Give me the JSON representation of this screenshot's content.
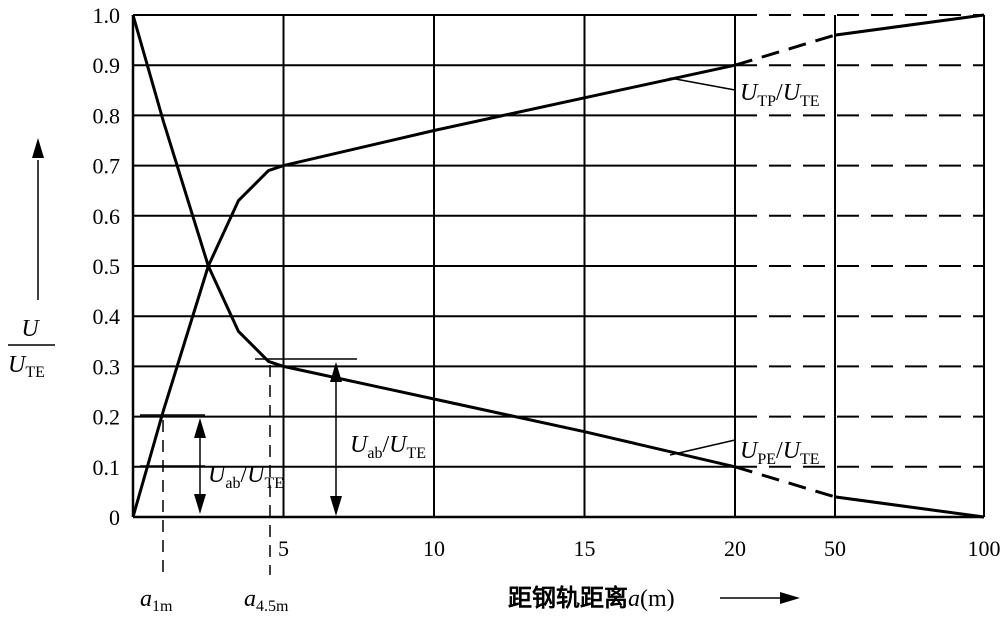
{
  "chart_data": {
    "type": "line",
    "title": "",
    "xlabel": "距钢轨距离",
    "xlabel_var": "a",
    "xlabel_unit": "(m)",
    "ylabel_num": "U",
    "ylabel_den": "U",
    "ylabel_den_sub": "TE",
    "y_ticks": [
      "0",
      "0.1",
      "0.2",
      "0.3",
      "0.4",
      "0.5",
      "0.6",
      "0.7",
      "0.8",
      "0.9",
      "1.0"
    ],
    "x_ticks": [
      "5",
      "10",
      "15",
      "20",
      "50",
      "100"
    ],
    "x_tick_values": [
      5,
      10,
      15,
      20,
      50,
      100
    ],
    "ylim": [
      0,
      1.0
    ],
    "x_scale": "linear 0–20 m, compressed 20–100 m",
    "grid": true,
    "series": [
      {
        "name": "U_TP/U_TE",
        "points": [
          [
            0,
            0
          ],
          [
            1,
            0.21
          ],
          [
            2.5,
            0.5
          ],
          [
            3.5,
            0.63
          ],
          [
            4.5,
            0.69
          ],
          [
            5,
            0.7
          ],
          [
            10,
            0.77
          ],
          [
            15,
            0.835
          ],
          [
            20,
            0.9
          ],
          [
            50,
            0.96
          ],
          [
            100,
            1.0
          ]
        ]
      },
      {
        "name": "U_PE/U_TE",
        "points": [
          [
            0,
            1.0
          ],
          [
            1,
            0.79
          ],
          [
            2.5,
            0.5
          ],
          [
            3.5,
            0.37
          ],
          [
            4.5,
            0.31
          ],
          [
            5,
            0.3
          ],
          [
            10,
            0.235
          ],
          [
            15,
            0.17
          ],
          [
            20,
            0.1
          ],
          [
            50,
            0.04
          ],
          [
            100,
            0
          ]
        ]
      }
    ],
    "annotations": {
      "tp_label": {
        "main": "U",
        "sub": "TP",
        "sep": "/",
        "main2": "U",
        "sub2": "TE"
      },
      "pe_label": {
        "main": "U",
        "sub": "PE",
        "sep": "/",
        "main2": "U",
        "sub2": "TE"
      },
      "uab_right": {
        "main": "U",
        "sub": "ab",
        "sep": "/",
        "main2": "U",
        "sub2": "TE"
      },
      "uab_left": {
        "main": "U",
        "sub": "ab",
        "sep": "/",
        "main2": "U",
        "sub2": "TE"
      },
      "a1m": {
        "main": "a",
        "sub": "1m"
      },
      "a45m": {
        "main": "a",
        "sub": "4.5m"
      }
    }
  }
}
